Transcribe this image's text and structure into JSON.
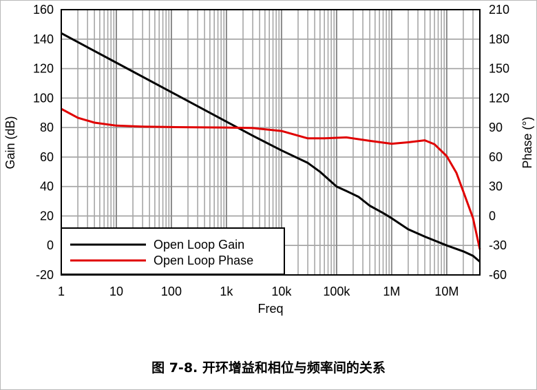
{
  "caption": {
    "label": "图 7-8.",
    "text": "开环增益和相位与频率间的关系"
  },
  "chart_data": {
    "type": "line",
    "title": "",
    "xlabel": "Freq",
    "ylabel": "Gain (dB)",
    "y2label": "Phase (°)",
    "xscale": "log",
    "xlim": [
      1,
      40000000
    ],
    "ylim": [
      -20,
      160
    ],
    "y2lim": [
      -60,
      210
    ],
    "grid": true,
    "legend_position": "bottom-left",
    "x_tick_values": [
      1,
      10,
      100,
      1000,
      10000,
      100000,
      1000000,
      10000000
    ],
    "x_tick_labels": [
      "1",
      "10",
      "100",
      "1k",
      "10k",
      "100k",
      "1M",
      "10M"
    ],
    "y_tick_values": [
      160,
      140,
      120,
      100,
      80,
      60,
      40,
      20,
      0,
      -20
    ],
    "y_tick_labels": [
      "160",
      "140",
      "120",
      "100",
      "80",
      "60",
      "40",
      "20",
      "0",
      "-20"
    ],
    "y2_tick_values": [
      210,
      180,
      150,
      120,
      90,
      60,
      30,
      0,
      -30,
      -60
    ],
    "y2_tick_labels": [
      "210",
      "180",
      "150",
      "120",
      "90",
      "60",
      "30",
      "0",
      "-30",
      "-60"
    ],
    "series": [
      {
        "name": "Open Loop Gain",
        "axis": "left",
        "color": "#000000",
        "x": [
          1,
          10,
          100,
          1000,
          3000,
          10000,
          30000,
          50000,
          100000,
          150000,
          250000,
          400000,
          700000,
          1000000,
          2000000,
          4000000,
          10000000,
          20000000,
          30000000,
          40000000
        ],
        "y": [
          144,
          124,
          104,
          84,
          74.5,
          64.5,
          56,
          50,
          40,
          37,
          33,
          27,
          22,
          18.5,
          11,
          6,
          0,
          -4,
          -7,
          -11
        ]
      },
      {
        "name": "Open Loop Phase",
        "axis": "right",
        "color": "#e00000",
        "x": [
          1,
          2,
          4,
          10,
          30,
          100,
          1000,
          3000,
          10000,
          30000,
          60000,
          150000,
          400000,
          1000000,
          2000000,
          4000000,
          6000000,
          10000000,
          15000000,
          20000000,
          30000000,
          40000000
        ],
        "y": [
          109,
          100,
          95,
          92,
          91,
          90.5,
          90,
          89.5,
          86.5,
          79,
          79,
          80,
          76.5,
          73.5,
          75,
          77,
          73,
          61,
          44,
          25,
          -2,
          -34
        ]
      }
    ]
  }
}
